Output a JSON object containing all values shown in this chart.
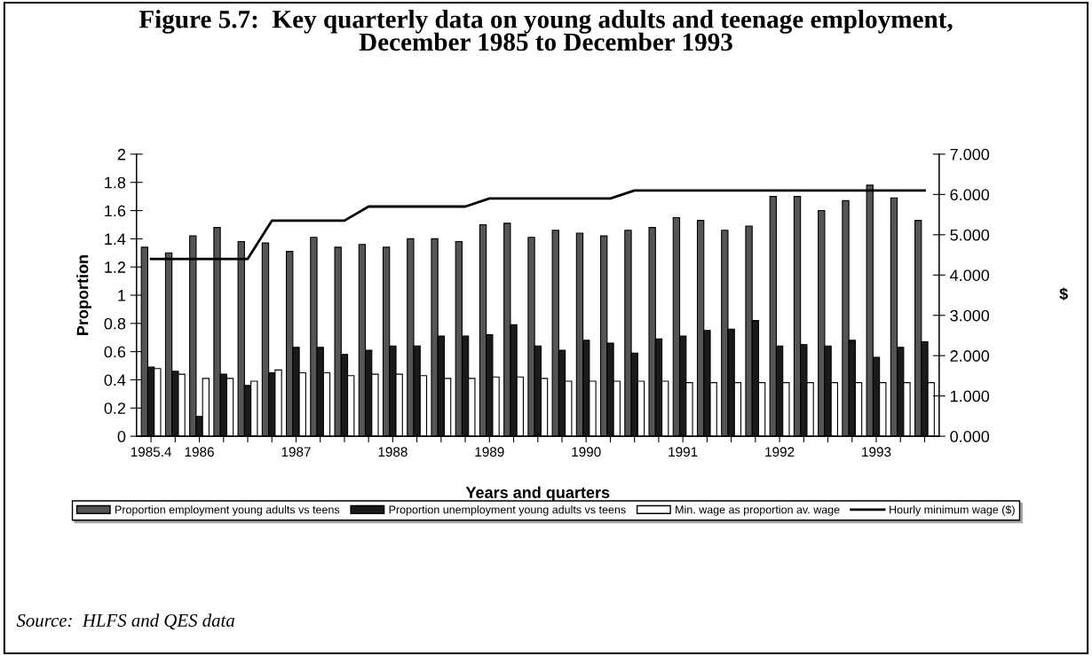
{
  "chart_data": {
    "type": "bar",
    "title": "Figure 5.7:  Key quarterly data on young adults and teenage employment,\nDecember 1985 to December 1993",
    "xlabel": "Years and quarters",
    "ylabel": "Proportion",
    "y2label": "$",
    "categories": [
      "1985.4",
      null,
      "1986",
      null,
      null,
      null,
      "1987",
      null,
      null,
      null,
      "1988",
      null,
      null,
      null,
      "1989",
      null,
      null,
      null,
      "1990",
      null,
      null,
      null,
      "1991",
      null,
      null,
      null,
      "1992",
      null,
      null,
      null,
      "1993",
      null,
      null
    ],
    "series": [
      {
        "name": "Proportion employment young adults vs teens",
        "color": "#555555",
        "values": [
          1.34,
          1.3,
          1.42,
          1.48,
          1.38,
          1.37,
          1.31,
          1.41,
          1.34,
          1.36,
          1.34,
          1.4,
          1.4,
          1.38,
          1.5,
          1.51,
          1.41,
          1.46,
          1.44,
          1.42,
          1.46,
          1.48,
          1.55,
          1.53,
          1.46,
          1.49,
          1.7,
          1.7,
          1.6,
          1.67,
          1.78,
          1.69,
          1.53
        ]
      },
      {
        "name": "Proportion unemployment young adults vs teens",
        "color": "#1a1a1a",
        "values": [
          0.49,
          0.46,
          0.14,
          0.44,
          0.36,
          0.45,
          0.63,
          0.63,
          0.58,
          0.61,
          0.64,
          0.64,
          0.71,
          0.71,
          0.72,
          0.79,
          0.64,
          0.61,
          0.68,
          0.66,
          0.59,
          0.69,
          0.71,
          0.75,
          0.76,
          0.82,
          0.64,
          0.65,
          0.64,
          0.68,
          0.56,
          0.63,
          0.67
        ]
      },
      {
        "name": "Min. wage as proportion av. wage",
        "color": "#ffffff",
        "values": [
          0.48,
          0.44,
          0.41,
          0.41,
          0.39,
          0.47,
          0.45,
          0.45,
          0.43,
          0.44,
          0.44,
          0.43,
          0.41,
          0.41,
          0.42,
          0.42,
          0.41,
          0.39,
          0.39,
          0.39,
          0.39,
          0.39,
          0.38,
          0.38,
          0.38,
          0.38,
          0.38,
          0.38,
          0.38,
          0.38,
          0.38,
          0.38,
          0.38
        ]
      },
      {
        "name": "Hourly minimum wage ($)",
        "type": "line",
        "axis": "y2",
        "color": "#000000",
        "values": [
          4.4,
          4.4,
          4.4,
          4.4,
          4.4,
          5.35,
          5.35,
          5.35,
          5.35,
          5.7,
          5.7,
          5.7,
          5.7,
          5.7,
          5.9,
          5.9,
          5.9,
          5.9,
          5.9,
          5.9,
          6.1,
          6.1,
          6.1,
          6.1,
          6.1,
          6.1,
          6.1,
          6.1,
          6.1,
          6.1,
          6.1,
          6.1,
          6.1
        ]
      }
    ],
    "ylim": [
      0,
      2
    ],
    "yticks": [
      0,
      0.2,
      0.4,
      0.6,
      0.8,
      1,
      1.2,
      1.4,
      1.6,
      1.8,
      2
    ],
    "y2lim": [
      0,
      7
    ],
    "y2ticks": [
      {
        "value": 0,
        "label": "0.000"
      },
      {
        "value": 1,
        "label": "1.000"
      },
      {
        "value": 2,
        "label": "2.000"
      },
      {
        "value": 3,
        "label": "3.000"
      },
      {
        "value": 4,
        "label": "4.000"
      },
      {
        "value": 5,
        "label": "5.000"
      },
      {
        "value": 6,
        "label": "6.000"
      },
      {
        "value": 7,
        "label": "7.000"
      }
    ],
    "legend": "bottom",
    "annotations": [
      "Source:  HLFS and QES data"
    ]
  }
}
